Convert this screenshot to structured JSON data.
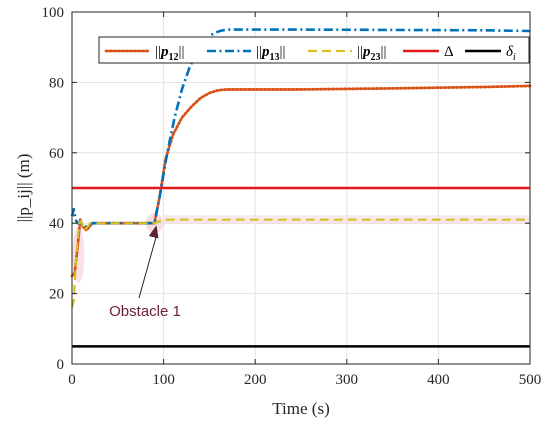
{
  "chart_data": {
    "type": "line",
    "xlabel": "Time (s)",
    "ylabel": "||p_ij|| (m)",
    "xlim": [
      0,
      500
    ],
    "ylim": [
      0,
      100
    ],
    "xticks": [
      0,
      100,
      200,
      300,
      400,
      500
    ],
    "yticks": [
      0,
      20,
      40,
      60,
      80,
      100
    ],
    "xtick_labels": [
      "0",
      "100",
      "200",
      "300",
      "400",
      "500"
    ],
    "ytick_labels": [
      "0",
      "20",
      "40",
      "60",
      "80",
      "100"
    ],
    "grid": true,
    "legend_position": "top",
    "series": [
      {
        "name": "||p12||",
        "color": "#d95319",
        "style": "dotted",
        "points": [
          [
            0,
            25
          ],
          [
            3,
            26
          ],
          [
            6,
            33
          ],
          [
            9,
            41
          ],
          [
            12,
            39
          ],
          [
            16,
            38
          ],
          [
            22,
            40
          ],
          [
            30,
            40
          ],
          [
            50,
            40
          ],
          [
            70,
            40
          ],
          [
            90,
            40
          ],
          [
            96,
            48
          ],
          [
            102,
            58
          ],
          [
            110,
            65
          ],
          [
            120,
            70
          ],
          [
            130,
            73
          ],
          [
            140,
            75.5
          ],
          [
            150,
            77
          ],
          [
            160,
            77.8
          ],
          [
            170,
            78
          ],
          [
            250,
            78
          ],
          [
            350,
            78.3
          ],
          [
            450,
            78.7
          ],
          [
            500,
            79
          ]
        ]
      },
      {
        "name": "||p13||",
        "color": "#0072bd",
        "style": "dashdot",
        "points": [
          [
            0,
            42
          ],
          [
            2,
            44
          ],
          [
            4,
            41
          ],
          [
            6,
            40
          ],
          [
            10,
            40
          ],
          [
            16,
            39
          ],
          [
            22,
            40
          ],
          [
            30,
            40
          ],
          [
            50,
            40
          ],
          [
            70,
            40
          ],
          [
            90,
            40
          ],
          [
            96,
            48
          ],
          [
            104,
            60
          ],
          [
            112,
            70
          ],
          [
            120,
            78
          ],
          [
            128,
            84
          ],
          [
            136,
            88.5
          ],
          [
            144,
            91.5
          ],
          [
            152,
            93.5
          ],
          [
            160,
            94.5
          ],
          [
            168,
            95
          ],
          [
            250,
            95
          ],
          [
            350,
            94.9
          ],
          [
            450,
            94.8
          ],
          [
            500,
            94.6
          ]
        ]
      },
      {
        "name": "||p23||",
        "color": "#d3c127",
        "style": "dashed",
        "points": [
          [
            0,
            16
          ],
          [
            2,
            18
          ],
          [
            4,
            28
          ],
          [
            6,
            35
          ],
          [
            8,
            40
          ],
          [
            10,
            40.5
          ],
          [
            14,
            38
          ],
          [
            20,
            40
          ],
          [
            30,
            40
          ],
          [
            50,
            40
          ],
          [
            70,
            40
          ],
          [
            90,
            40
          ],
          [
            95,
            40.5
          ],
          [
            100,
            41
          ],
          [
            200,
            41
          ],
          [
            300,
            41
          ],
          [
            400,
            41
          ],
          [
            500,
            41
          ]
        ]
      },
      {
        "name": "Δ",
        "color": "#e31a1c",
        "style": "solid",
        "points": [
          [
            0,
            50
          ],
          [
            500,
            50
          ]
        ]
      },
      {
        "name": "δ_i",
        "color": "#000000",
        "style": "solid",
        "points": [
          [
            0,
            5
          ],
          [
            500,
            5
          ]
        ]
      }
    ],
    "annotations": [
      {
        "text": "Obstacle 1",
        "arrow_to": [
          92,
          40
        ]
      }
    ]
  }
}
